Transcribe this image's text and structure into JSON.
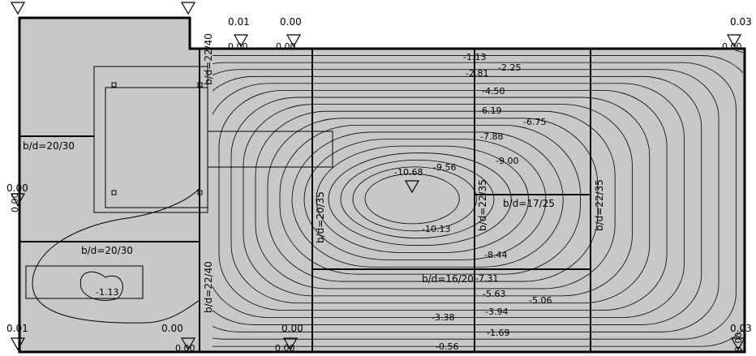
{
  "supports": [
    "0.01",
    "0.00",
    "0.00",
    "0.00",
    "0.03",
    "0.00",
    "0.00",
    "0.00",
    "0.01",
    "0.00",
    "0.00",
    "0.00",
    "0.00",
    "0.03",
    "0.00"
  ],
  "beams": [
    "b/d=22/40",
    "b/d=20/30",
    "b/d=20/30",
    "b/d=22/40",
    "b/d=20/35",
    "b/d=22/35",
    "b/d=17/25",
    "b/d=22/35",
    "b/d=16/20"
  ],
  "contours": [
    "-1.13",
    "-2.25",
    "-2.81",
    "-4.50",
    "-6.19",
    "-6.75",
    "-7.88",
    "-9.00",
    "-9.56",
    "-10.68",
    "-10.13",
    "-8.44",
    "-7.31",
    "-5.63",
    "-5.06",
    "-3.94",
    "-3.38",
    "-1.69",
    "-0.56",
    "-1.13"
  ]
}
